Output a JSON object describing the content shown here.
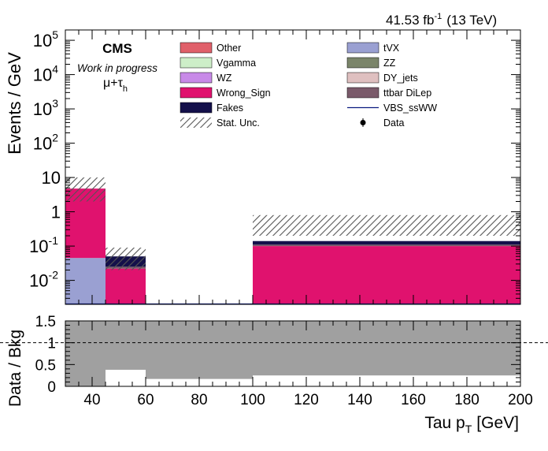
{
  "header": {
    "lumi_value": "41.53 fb",
    "lumi_exp": "-1",
    "energy": "(13 TeV)"
  },
  "labels": {
    "cms": "CMS",
    "status": "Work in progress",
    "channel": "μ+τ",
    "channel_sub": "h"
  },
  "legend": [
    {
      "label": "Other",
      "color": "#e0606a",
      "kind": "box"
    },
    {
      "label": "tVX",
      "color": "#9aa0d2",
      "kind": "box"
    },
    {
      "label": "Vgamma",
      "color": "#cdeec8",
      "kind": "box"
    },
    {
      "label": "ZZ",
      "color": "#7b856a",
      "kind": "box"
    },
    {
      "label": "WZ",
      "color": "#c88ae8",
      "kind": "box"
    },
    {
      "label": "DY_jets",
      "color": "#dfc0c0",
      "kind": "box"
    },
    {
      "label": "Wrong_Sign",
      "color": "#e0126e",
      "kind": "box"
    },
    {
      "label": "ttbar DiLep",
      "color": "#7a5a6a",
      "kind": "box"
    },
    {
      "label": "Fakes",
      "color": "#14104a",
      "kind": "box"
    },
    {
      "label": "VBS_ssWW",
      "color": "#0a1a80",
      "kind": "line"
    },
    {
      "label": "Stat. Unc.",
      "color": "#555555",
      "kind": "hatch"
    },
    {
      "label": "Data",
      "color": "#000000",
      "kind": "marker"
    }
  ],
  "chart_data": [
    {
      "type": "bar",
      "subtype": "stacked histogram",
      "xlabel": "Tau p",
      "xlabel_sub": "T",
      "xlabel_unit": "[GeV]",
      "ylabel": "Events / GeV",
      "xlim": [
        30,
        200
      ],
      "ylim": [
        0.002,
        200000
      ],
      "yscale": "log",
      "bins": [
        [
          30,
          45
        ],
        [
          45,
          60
        ],
        [
          60,
          100
        ],
        [
          100,
          200
        ]
      ],
      "series": [
        {
          "name": "tVX",
          "color": "#9aa0d2",
          "values": [
            0.045,
            0,
            0,
            0
          ]
        },
        {
          "name": "Wrong_Sign",
          "color": "#e0126e",
          "values": [
            4.7,
            0.022,
            0,
            0.1
          ]
        },
        {
          "name": "ttbar DiLep",
          "color": "#7a5a6a",
          "values": [
            0,
            0.003,
            0,
            0.01
          ]
        },
        {
          "name": "Fakes",
          "color": "#14104a",
          "values": [
            0,
            0.025,
            0,
            0.03
          ]
        }
      ],
      "uncertainty_band": {
        "low": [
          2.0,
          0.02,
          0,
          0.2
        ],
        "high": [
          10.0,
          0.09,
          0,
          0.8
        ]
      },
      "xticks": [
        40,
        60,
        80,
        100,
        120,
        140,
        160,
        180,
        200
      ],
      "yticks": [
        {
          "value": 0.01,
          "base": "10",
          "exp": "-2"
        },
        {
          "value": 0.1,
          "base": "10",
          "exp": "-1"
        },
        {
          "value": 1,
          "base": "1",
          "exp": ""
        },
        {
          "value": 10,
          "base": "10",
          "exp": ""
        },
        {
          "value": 100,
          "base": "10",
          "exp": "2"
        },
        {
          "value": 1000,
          "base": "10",
          "exp": "3"
        },
        {
          "value": 10000,
          "base": "10",
          "exp": "4"
        },
        {
          "value": 100000,
          "base": "10",
          "exp": "5"
        }
      ]
    },
    {
      "type": "bar",
      "subtype": "ratio band",
      "ylabel": "Data / Bkg",
      "xlim": [
        30,
        200
      ],
      "ylim": [
        0,
        1.5
      ],
      "reference_line": 1,
      "bins": [
        [
          30,
          45
        ],
        [
          45,
          60
        ],
        [
          60,
          100
        ],
        [
          100,
          200
        ]
      ],
      "band_low": [
        0,
        0.38,
        0.17,
        0.25
      ],
      "band_high": [
        1.5,
        1.5,
        1.5,
        1.5
      ],
      "yticks": [
        "0",
        "0.5",
        "1",
        "1.5"
      ]
    }
  ]
}
